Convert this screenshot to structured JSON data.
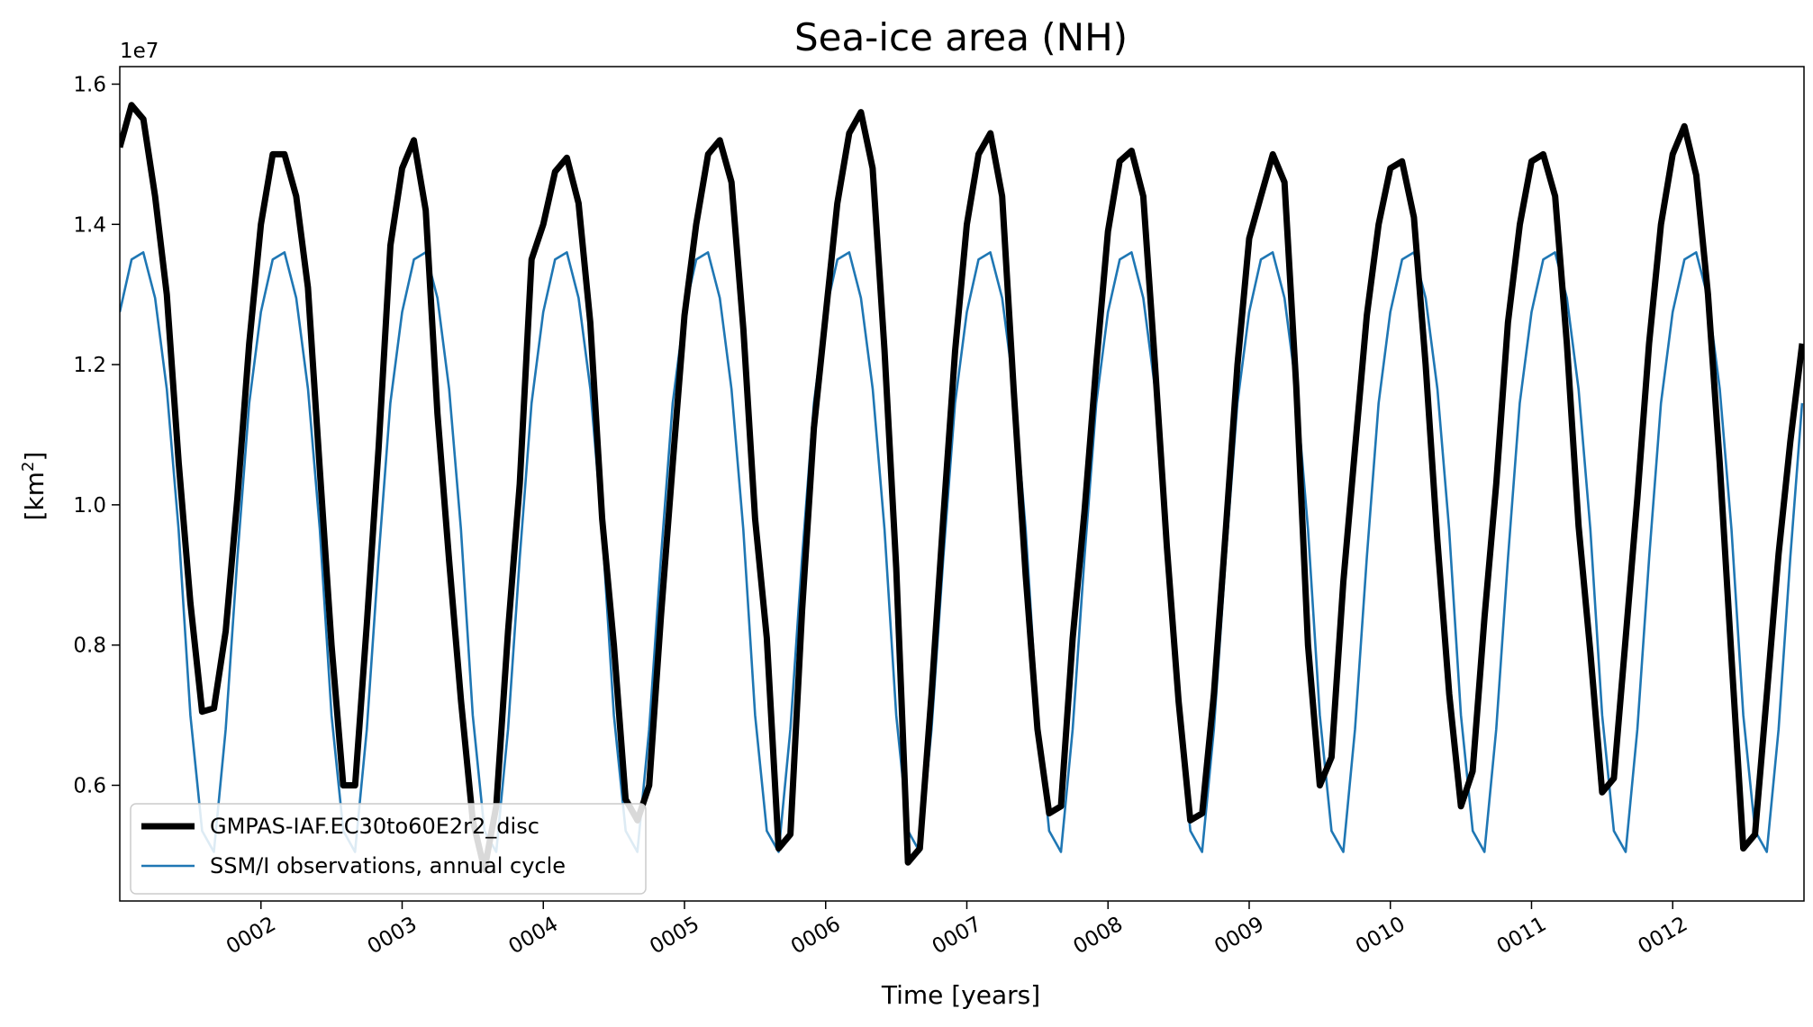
{
  "chart_data": {
    "type": "line",
    "title": "Sea-ice area (NH)",
    "xlabel": "Time [years]",
    "ylabel_main": "[km",
    "ylabel_sup": "2",
    "ylabel_close": "]",
    "y_offset_label": "1e7",
    "xlim": [
      1.0,
      12.93
    ],
    "ylim": [
      0.435,
      1.625
    ],
    "x_ticks": [
      2,
      3,
      4,
      5,
      6,
      7,
      8,
      9,
      10,
      11,
      12
    ],
    "x_tick_labels": [
      "0002",
      "0003",
      "0004",
      "0005",
      "0006",
      "0007",
      "0008",
      "0009",
      "0010",
      "0011",
      "0012"
    ],
    "y_ticks": [
      0.6,
      0.8,
      1.0,
      1.2,
      1.4,
      1.6
    ],
    "y_tick_labels": [
      "0.6",
      "0.8",
      "1.0",
      "1.2",
      "1.4",
      "1.6"
    ],
    "grid": false,
    "legend_position": "lower-left",
    "series": [
      {
        "name": "GMPAS-IAF.EC30to60E2r2_disc",
        "color": "#000000",
        "style": "thick",
        "x": [
          1.0,
          1.083,
          1.167,
          1.25,
          1.333,
          1.417,
          1.5,
          1.583,
          1.667,
          1.75,
          1.833,
          1.917,
          2.0,
          2.083,
          2.167,
          2.25,
          2.333,
          2.417,
          2.5,
          2.583,
          2.667,
          2.75,
          2.833,
          2.917,
          3.0,
          3.083,
          3.167,
          3.25,
          3.333,
          3.417,
          3.5,
          3.583,
          3.667,
          3.75,
          3.833,
          3.917,
          4.0,
          4.083,
          4.167,
          4.25,
          4.333,
          4.417,
          4.5,
          4.583,
          4.667,
          4.75,
          4.833,
          4.917,
          5.0,
          5.083,
          5.167,
          5.25,
          5.333,
          5.417,
          5.5,
          5.583,
          5.667,
          5.75,
          5.833,
          5.917,
          6.0,
          6.083,
          6.167,
          6.25,
          6.333,
          6.417,
          6.5,
          6.583,
          6.667,
          6.75,
          6.833,
          6.917,
          7.0,
          7.083,
          7.167,
          7.25,
          7.333,
          7.417,
          7.5,
          7.583,
          7.667,
          7.75,
          7.833,
          7.917,
          8.0,
          8.083,
          8.167,
          8.25,
          8.333,
          8.417,
          8.5,
          8.583,
          8.667,
          8.75,
          8.833,
          8.917,
          9.0,
          9.083,
          9.167,
          9.25,
          9.333,
          9.417,
          9.5,
          9.583,
          9.667,
          9.75,
          9.833,
          9.917,
          10.0,
          10.083,
          10.167,
          10.25,
          10.333,
          10.417,
          10.5,
          10.583,
          10.667,
          10.75,
          10.833,
          10.917,
          11.0,
          11.083,
          11.167,
          11.25,
          11.333,
          11.417,
          11.5,
          11.583,
          11.667,
          11.75,
          11.833,
          11.917,
          12.0,
          12.083,
          12.167,
          12.25,
          12.333,
          12.417,
          12.5,
          12.583,
          12.667,
          12.75,
          12.833,
          12.917
        ],
        "y": [
          1.51,
          1.57,
          1.55,
          1.44,
          1.3,
          1.06,
          0.86,
          0.705,
          0.71,
          0.82,
          1.01,
          1.23,
          1.4,
          1.5,
          1.5,
          1.44,
          1.31,
          1.05,
          0.8,
          0.6,
          0.6,
          0.83,
          1.08,
          1.37,
          1.48,
          1.52,
          1.42,
          1.13,
          0.92,
          0.72,
          0.55,
          0.48,
          0.57,
          0.82,
          1.03,
          1.35,
          1.4,
          1.475,
          1.495,
          1.43,
          1.26,
          0.98,
          0.8,
          0.58,
          0.55,
          0.6,
          0.84,
          1.06,
          1.27,
          1.4,
          1.5,
          1.52,
          1.46,
          1.25,
          0.98,
          0.81,
          0.51,
          0.53,
          0.85,
          1.11,
          1.27,
          1.43,
          1.53,
          1.56,
          1.48,
          1.22,
          0.91,
          0.49,
          0.51,
          0.73,
          0.98,
          1.22,
          1.4,
          1.5,
          1.53,
          1.44,
          1.16,
          0.9,
          0.68,
          0.56,
          0.57,
          0.81,
          0.99,
          1.2,
          1.39,
          1.49,
          1.505,
          1.44,
          1.2,
          0.94,
          0.72,
          0.55,
          0.56,
          0.73,
          0.96,
          1.2,
          1.38,
          1.44,
          1.5,
          1.46,
          1.17,
          0.8,
          0.6,
          0.64,
          0.89,
          1.08,
          1.27,
          1.4,
          1.48,
          1.49,
          1.41,
          1.2,
          0.95,
          0.73,
          0.57,
          0.62,
          0.84,
          1.03,
          1.26,
          1.4,
          1.49,
          1.5,
          1.44,
          1.23,
          0.97,
          0.79,
          0.59,
          0.61,
          0.81,
          1.01,
          1.23,
          1.4,
          1.5,
          1.54,
          1.47,
          1.3,
          1.06,
          0.78,
          0.51,
          0.53,
          0.73,
          0.93,
          1.09,
          1.23
        ]
      },
      {
        "name": "SSM/I observations, annual cycle",
        "color": "#1f77b4",
        "style": "thin",
        "pattern_months": [
          1.275,
          1.35,
          1.36,
          1.295,
          1.165,
          0.965,
          0.7,
          0.535,
          0.505,
          0.68,
          0.925,
          1.145
        ],
        "x_start": 1.0,
        "x_end": 12.93
      }
    ]
  }
}
